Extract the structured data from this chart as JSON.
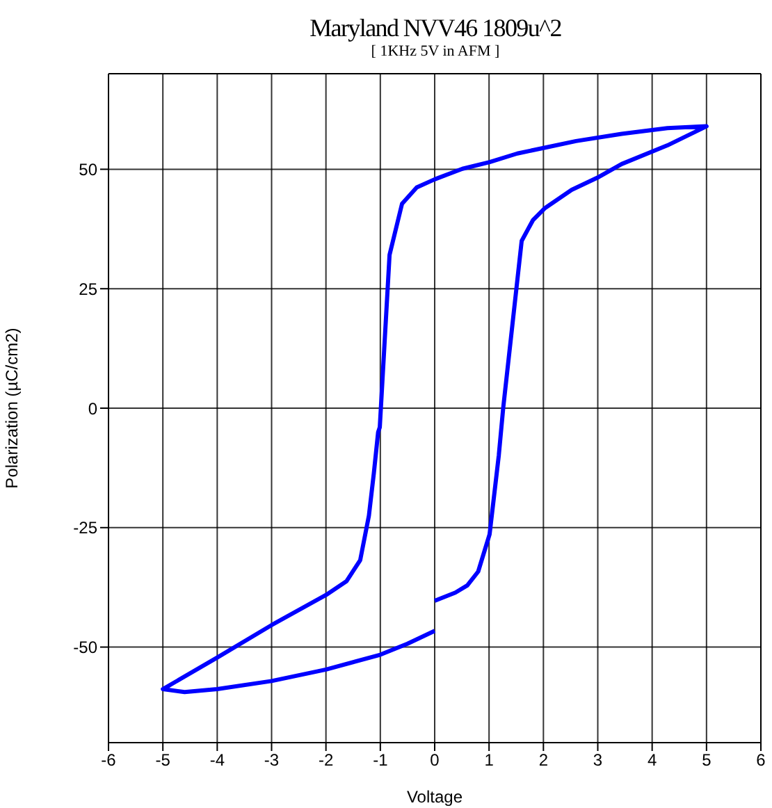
{
  "chart_data": {
    "type": "line",
    "title": "Maryland NVV46 1809u^2",
    "subtitle": "[ 1KHz 5V in AFM ]",
    "xlabel": "Voltage",
    "ylabel": "Polarization (µC/cm2)",
    "series": [
      {
        "color": "#0000ff",
        "x": [
          0,
          0.38,
          0.6,
          0.8,
          1.01,
          1.18,
          1.26,
          1.6,
          1.81,
          2.02,
          2.52,
          3.02,
          3.44,
          4.28,
          5,
          4.28,
          3.44,
          2.6,
          2.02,
          1.52,
          1.01,
          0.51,
          0,
          -0.33,
          -0.6,
          -0.83,
          -1.01,
          -1.04,
          -1.12,
          -1.21,
          -1.37,
          -1.62,
          -2,
          -3,
          -4,
          -5,
          -4.6,
          -4,
          -3,
          -2,
          -1,
          -0.5,
          0
        ],
        "values": [
          -40.3,
          -38.6,
          -37.1,
          -34.2,
          -26.4,
          -9.8,
          0,
          35,
          39.4,
          41.8,
          45.7,
          48.4,
          51.1,
          55,
          59,
          58.6,
          57.4,
          55.9,
          54.5,
          53.3,
          51.5,
          50.1,
          47.9,
          46.2,
          42.8,
          32.1,
          -4,
          -5,
          -13.7,
          -22.5,
          -31.8,
          -36.2,
          -39.1,
          -45.4,
          -52.2,
          -58.8,
          -59.4,
          -58.8,
          -57.1,
          -54.7,
          -51.6,
          -49.3,
          -46.6
        ]
      }
    ],
    "xlim": [
      -6,
      6
    ],
    "xticks": [
      -6,
      -5,
      -4,
      -3,
      -2,
      -1,
      0,
      1,
      2,
      3,
      4,
      5,
      6
    ],
    "ylim": [
      -70,
      70
    ],
    "yticks": [
      -50,
      -25,
      0,
      25,
      50
    ],
    "grid": true,
    "marker": "none",
    "line_style": "solid"
  }
}
